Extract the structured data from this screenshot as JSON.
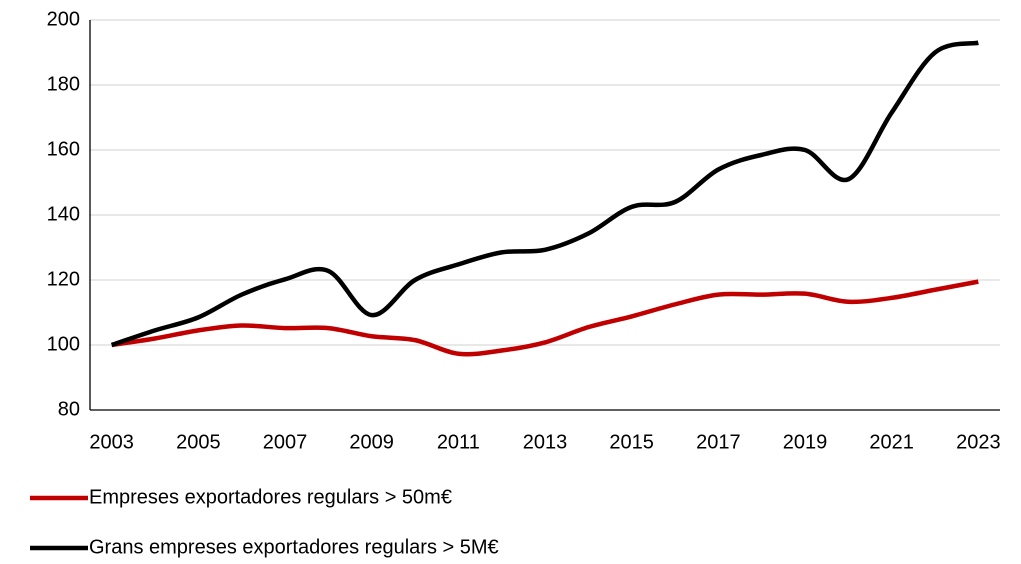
{
  "chart_data": {
    "type": "line",
    "categories": [
      "2003",
      null,
      "2005",
      null,
      "2007",
      null,
      "2009",
      null,
      "2011",
      null,
      "2013",
      null,
      "2015",
      null,
      "2017",
      null,
      "2019",
      null,
      "2021",
      null,
      "2023"
    ],
    "series": [
      {
        "name": "Empreses exportadores regulars > 50m€",
        "color": "#c00000",
        "values": [
          100,
          102,
          104.5,
          106,
          105.2,
          105.2,
          102.7,
          101.5,
          97.3,
          98.3,
          100.8,
          105.5,
          108.8,
          112.5,
          115.5,
          115.5,
          115.8,
          113.3,
          114.5,
          117,
          119.5
        ]
      },
      {
        "name": "Grans empreses exportadores regulars > 5M€",
        "color": "#000000",
        "values": [
          100,
          104.5,
          108.5,
          115.5,
          120.2,
          122.8,
          109.2,
          120,
          124.8,
          128.5,
          129.3,
          134.3,
          142.5,
          144,
          154,
          158.5,
          160,
          151,
          171.5,
          190,
          193
        ]
      }
    ],
    "ylim": [
      80,
      200
    ],
    "yticks": [
      80,
      100,
      120,
      140,
      160,
      180,
      200
    ],
    "grid": true
  }
}
